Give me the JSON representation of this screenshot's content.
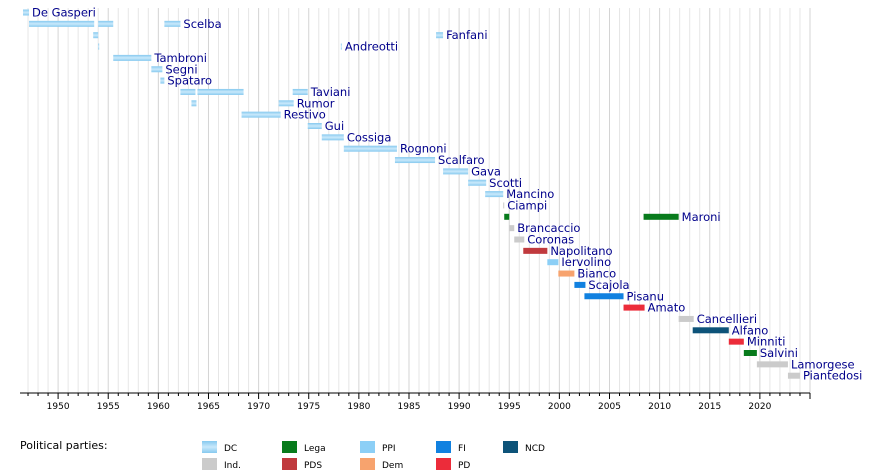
{
  "chart_data": {
    "type": "timeline",
    "x_range": [
      1946.2,
      2025
    ],
    "x_ticks": [
      1950,
      1955,
      1960,
      1965,
      1970,
      1975,
      1980,
      1985,
      1990,
      1995,
      2000,
      2005,
      2010,
      2015,
      2020
    ],
    "legend_title": "Political parties:",
    "parties": [
      {
        "key": "DC",
        "name": "DC",
        "color": "#9fd3f2",
        "style": "dc"
      },
      {
        "key": "Ind",
        "name": "Ind.",
        "color": "#cbcbcb"
      },
      {
        "key": "Lega",
        "name": "Lega",
        "color": "#087b1c"
      },
      {
        "key": "PDS",
        "name": "PDS",
        "color": "#c03a3e"
      },
      {
        "key": "PPI",
        "name": "PPI",
        "color": "#8ccff6"
      },
      {
        "key": "Dem",
        "name": "Dem",
        "color": "#f7a36e"
      },
      {
        "key": "FI",
        "name": "FI",
        "color": "#1181e0"
      },
      {
        "key": "PD",
        "name": "PD",
        "color": "#ec2c3a"
      },
      {
        "key": "NCD",
        "name": "NCD",
        "color": "#0d5379"
      }
    ],
    "ministers": [
      {
        "name": "De Gasperi",
        "terms": [
          {
            "start": 1946.5,
            "end": 1947.1,
            "party": "DC"
          }
        ]
      },
      {
        "name": "Scelba",
        "terms": [
          {
            "start": 1947.1,
            "end": 1953.6,
            "party": "DC"
          },
          {
            "start": 1954.0,
            "end": 1955.5,
            "party": "DC"
          },
          {
            "start": 1960.6,
            "end": 1962.2,
            "party": "DC"
          }
        ]
      },
      {
        "name": "Fanfani",
        "terms": [
          {
            "start": 1953.5,
            "end": 1954.0,
            "party": "DC"
          },
          {
            "start": 1987.7,
            "end": 1988.4,
            "party": "DC"
          }
        ]
      },
      {
        "name": "Andreotti",
        "terms": [
          {
            "start": 1954.0,
            "end": 1954.1,
            "party": "DC"
          },
          {
            "start": 1978.2,
            "end": 1978.3,
            "party": "DC"
          }
        ]
      },
      {
        "name": "Tambroni",
        "terms": [
          {
            "start": 1955.5,
            "end": 1959.3,
            "party": "DC"
          }
        ]
      },
      {
        "name": "Segni",
        "terms": [
          {
            "start": 1959.3,
            "end": 1960.4,
            "party": "DC"
          }
        ]
      },
      {
        "name": "Spataro",
        "terms": [
          {
            "start": 1960.2,
            "end": 1960.6,
            "party": "DC"
          }
        ]
      },
      {
        "name": "Taviani",
        "terms": [
          {
            "start": 1962.2,
            "end": 1963.7,
            "party": "DC"
          },
          {
            "start": 1963.9,
            "end": 1968.5,
            "party": "DC"
          },
          {
            "start": 1973.4,
            "end": 1974.9,
            "party": "DC"
          }
        ]
      },
      {
        "name": "Rumor",
        "terms": [
          {
            "start": 1963.3,
            "end": 1963.8,
            "party": "DC"
          },
          {
            "start": 1972.0,
            "end": 1973.5,
            "party": "DC"
          }
        ]
      },
      {
        "name": "Restivo",
        "terms": [
          {
            "start": 1968.3,
            "end": 1972.2,
            "party": "DC"
          }
        ]
      },
      {
        "name": "Gui",
        "terms": [
          {
            "start": 1974.9,
            "end": 1976.3,
            "party": "DC"
          }
        ]
      },
      {
        "name": "Cossiga",
        "terms": [
          {
            "start": 1976.3,
            "end": 1978.5,
            "party": "DC"
          }
        ]
      },
      {
        "name": "Rognoni",
        "terms": [
          {
            "start": 1978.5,
            "end": 1983.8,
            "party": "DC"
          }
        ]
      },
      {
        "name": "Scalfaro",
        "terms": [
          {
            "start": 1983.6,
            "end": 1987.6,
            "party": "DC"
          }
        ]
      },
      {
        "name": "Gava",
        "terms": [
          {
            "start": 1988.4,
            "end": 1990.9,
            "party": "DC"
          }
        ]
      },
      {
        "name": "Scotti",
        "terms": [
          {
            "start": 1990.9,
            "end": 1992.7,
            "party": "DC"
          }
        ]
      },
      {
        "name": "Mancino",
        "terms": [
          {
            "start": 1992.6,
            "end": 1994.4,
            "party": "DC"
          }
        ]
      },
      {
        "name": "Ciampi",
        "terms": [
          {
            "start": 1994.4,
            "end": 1994.5,
            "party": "Ind"
          }
        ]
      },
      {
        "name": "Maroni",
        "terms": [
          {
            "start": 1994.5,
            "end": 1995.0,
            "party": "Lega"
          },
          {
            "start": 2008.4,
            "end": 2011.9,
            "party": "Lega"
          }
        ]
      },
      {
        "name": "Brancaccio",
        "terms": [
          {
            "start": 1995.0,
            "end": 1995.5,
            "party": "Ind"
          }
        ]
      },
      {
        "name": "Coronas",
        "terms": [
          {
            "start": 1995.5,
            "end": 1996.5,
            "party": "Ind"
          }
        ]
      },
      {
        "name": "Napolitano",
        "terms": [
          {
            "start": 1996.4,
            "end": 1998.8,
            "party": "PDS"
          }
        ]
      },
      {
        "name": "Iervolino",
        "terms": [
          {
            "start": 1998.8,
            "end": 1999.9,
            "party": "PPI"
          }
        ]
      },
      {
        "name": "Bianco",
        "terms": [
          {
            "start": 1999.9,
            "end": 2001.5,
            "party": "Dem"
          }
        ]
      },
      {
        "name": "Scajola",
        "terms": [
          {
            "start": 2001.5,
            "end": 2002.6,
            "party": "FI"
          }
        ]
      },
      {
        "name": "Pisanu",
        "terms": [
          {
            "start": 2002.5,
            "end": 2006.4,
            "party": "FI"
          }
        ]
      },
      {
        "name": "Amato",
        "terms": [
          {
            "start": 2006.4,
            "end": 2008.5,
            "party": "PD"
          }
        ]
      },
      {
        "name": "Cancellieri",
        "terms": [
          {
            "start": 2011.9,
            "end": 2013.4,
            "party": "Ind"
          }
        ]
      },
      {
        "name": "Alfano",
        "terms": [
          {
            "start": 2013.3,
            "end": 2016.9,
            "party": "NCD"
          }
        ]
      },
      {
        "name": "Minniti",
        "terms": [
          {
            "start": 2016.9,
            "end": 2018.4,
            "party": "PD"
          }
        ]
      },
      {
        "name": "Salvini",
        "terms": [
          {
            "start": 2018.4,
            "end": 2019.7,
            "party": "Lega"
          }
        ]
      },
      {
        "name": "Lamorgese",
        "terms": [
          {
            "start": 2019.7,
            "end": 2022.8,
            "party": "Ind"
          }
        ]
      },
      {
        "name": "Piantedosi",
        "terms": [
          {
            "start": 2022.8,
            "end": 2024.0,
            "party": "Ind"
          }
        ]
      }
    ]
  }
}
